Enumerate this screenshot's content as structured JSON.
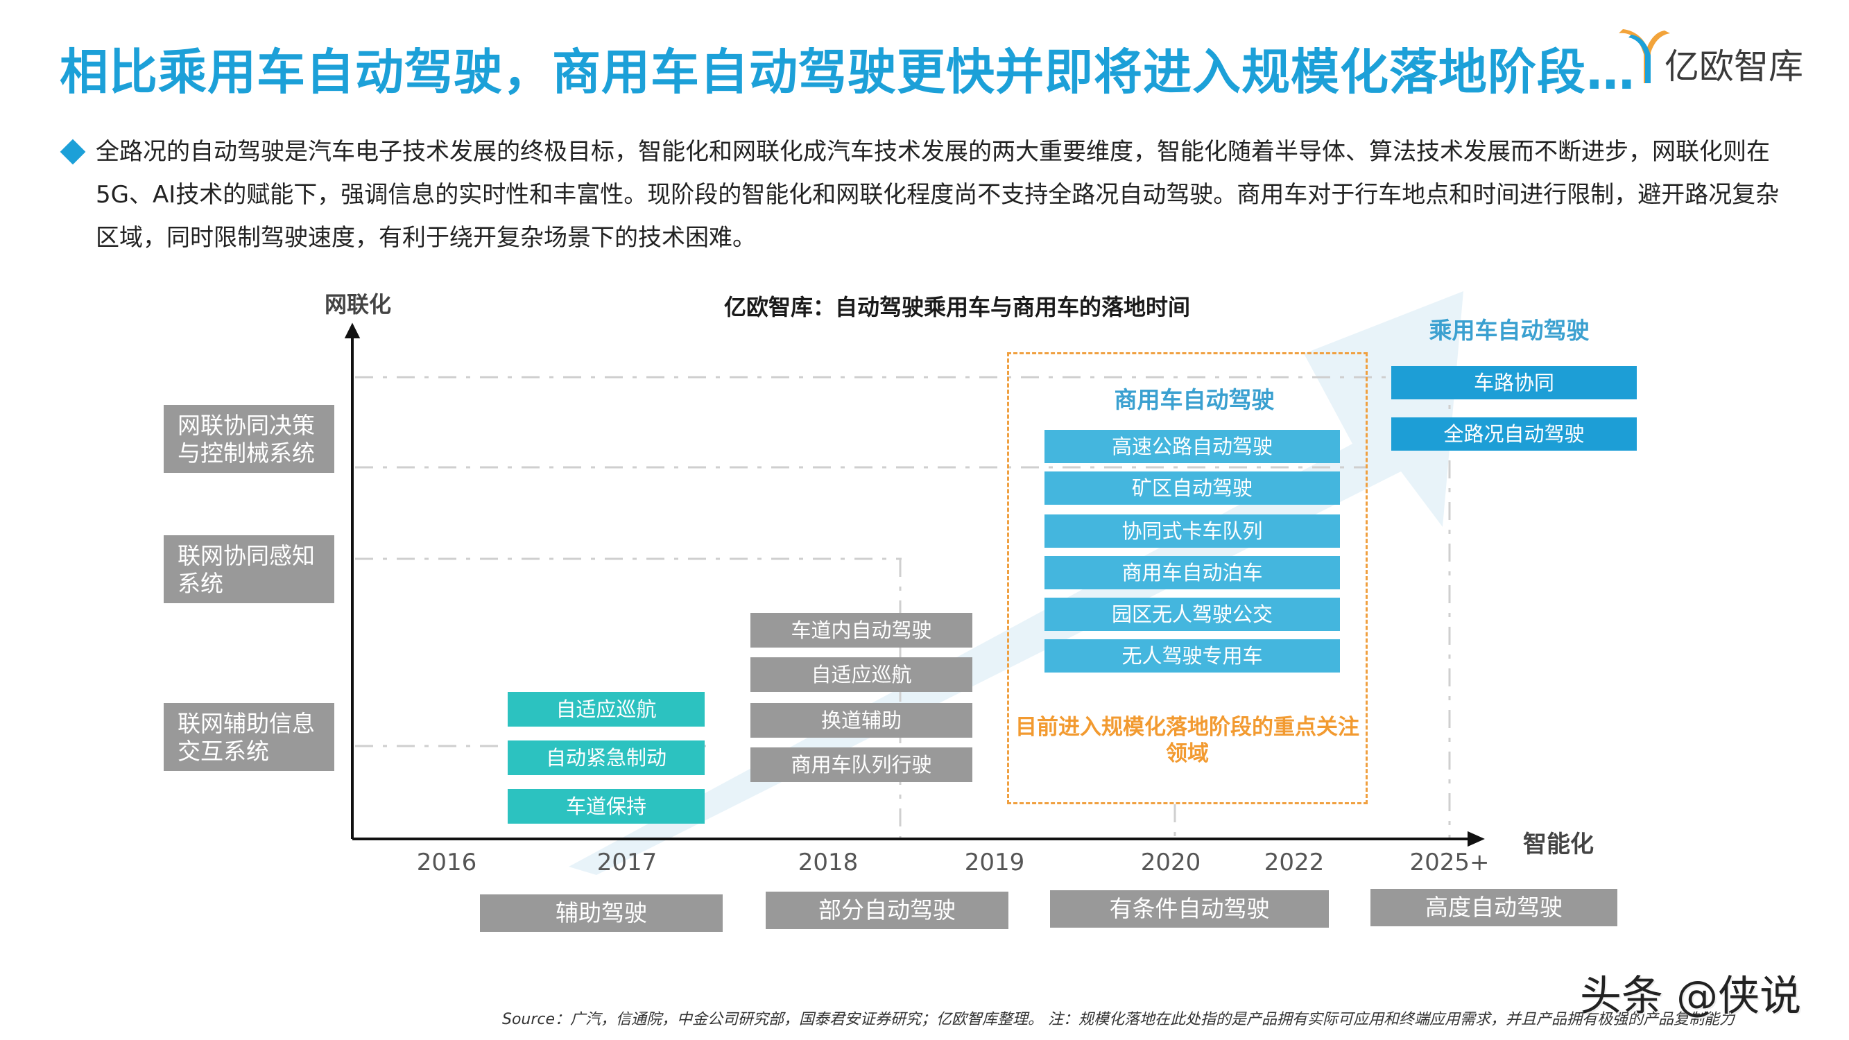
{
  "header": {
    "title": "相比乘用车自动驾驶，商用车自动驾驶更快并即将进入规模化落地阶段…",
    "logo_text": "亿欧智库"
  },
  "intro": {
    "text": "全路况的自动驾驶是汽车电子技术发展的终极目标，智能化和网联化成汽车技术发展的两大重要维度，智能化随着半导体、算法技术发展而不断进步，网联化则在5G、AI技术的赋能下，强调信息的实时性和丰富性。现阶段的智能化和网联化程度尚不支持全路况自动驾驶。商用车对于行车地点和时间进行限制，避开路况复杂区域，同时限制驾驶速度，有利于绕开复杂场景下的技术困难。"
  },
  "diagram": {
    "title": "亿欧智库：自动驾驶乘用车与商用车的落地时间",
    "y_axis_label": "网联化",
    "x_axis_label": "智能化",
    "y_levels": [
      "网联协同决策与控制械系统",
      "联网协同感知系统",
      "联网辅助信息交互系统"
    ],
    "years": [
      "2016",
      "2017",
      "2018",
      "2019",
      "2020",
      "2022",
      "2025+"
    ],
    "stages": [
      "辅助驾驶",
      "部分自动驾驶",
      "有条件自动驾驶",
      "高度自动驾驶"
    ],
    "assist": [
      "自适应巡航",
      "自动紧急制动",
      "车道保持"
    ],
    "partial": [
      "车道内自动驾驶",
      "自适应巡航",
      "换道辅助",
      "商用车队列行驶"
    ],
    "commercial": {
      "heading": "商用车自动驾驶",
      "items": [
        "高速公路自动驾驶",
        "矿区自动驾驶",
        "协同式卡车队列",
        "商用车自动泊车",
        "园区无人驾驶公交",
        "无人驾驶专用车"
      ],
      "focus_note": "目前进入规模化落地阶段的重点关注领域"
    },
    "passenger": {
      "heading": "乘用车自动驾驶",
      "items": [
        "车路协同",
        "全路况自动驾驶"
      ]
    }
  },
  "footer": {
    "source": "Source：广汽，信通院，中金公司研究部，国泰君安证券研究；亿欧智库整理。 注：规模化落地在此处指的是产品拥有实际可应用和终端应用需求，并且产品拥有极强的产品复制能力",
    "watermark": "头条 @侠说"
  },
  "colors": {
    "accent": "#1ca0d8",
    "teal": "#2cc2c0",
    "grey": "#999999",
    "light_blue": "#44b6de",
    "dark_blue": "#1d9ed6",
    "orange": "#f29a30"
  }
}
